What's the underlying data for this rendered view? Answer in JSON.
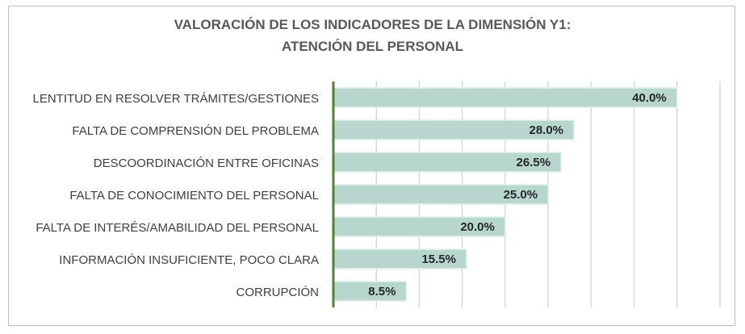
{
  "chart_data": {
    "type": "bar",
    "orientation": "horizontal",
    "title": "VALORACIÓN DE LOS INDICADORES DE LA DIMENSIÓN Y1:",
    "subtitle": "ATENCIÓN DEL PERSONAL",
    "categories": [
      "LENTITUD EN RESOLVER TRÁMITES/GESTIONES",
      "FALTA DE COMPRENSIÓN DEL PROBLEMA",
      "DESCOORDINACIÓN ENTRE OFICINAS",
      "FALTA DE CONOCIMIENTO DEL PERSONAL",
      "FALTA DE INTERÉS/AMABILIDAD DEL PERSONAL",
      "INFORMACIÓN INSUFICIENTE, POCO CLARA",
      "CORRUPCIÓN"
    ],
    "values": [
      40.0,
      28.0,
      26.5,
      25.0,
      20.0,
      15.5,
      8.5
    ],
    "data_labels": [
      "40.0%",
      "28.0%",
      "26.5%",
      "25.0%",
      "20.0%",
      "15.5%",
      "8.5%"
    ],
    "xlim": [
      0,
      45
    ],
    "grid_step": 5,
    "grid": true,
    "xlabel": "",
    "ylabel": "",
    "colors": {
      "bar": "#b7d7ce",
      "bar_edge": "#e2efeb",
      "axis": "#548235",
      "grid": "#d9d9d9"
    }
  }
}
